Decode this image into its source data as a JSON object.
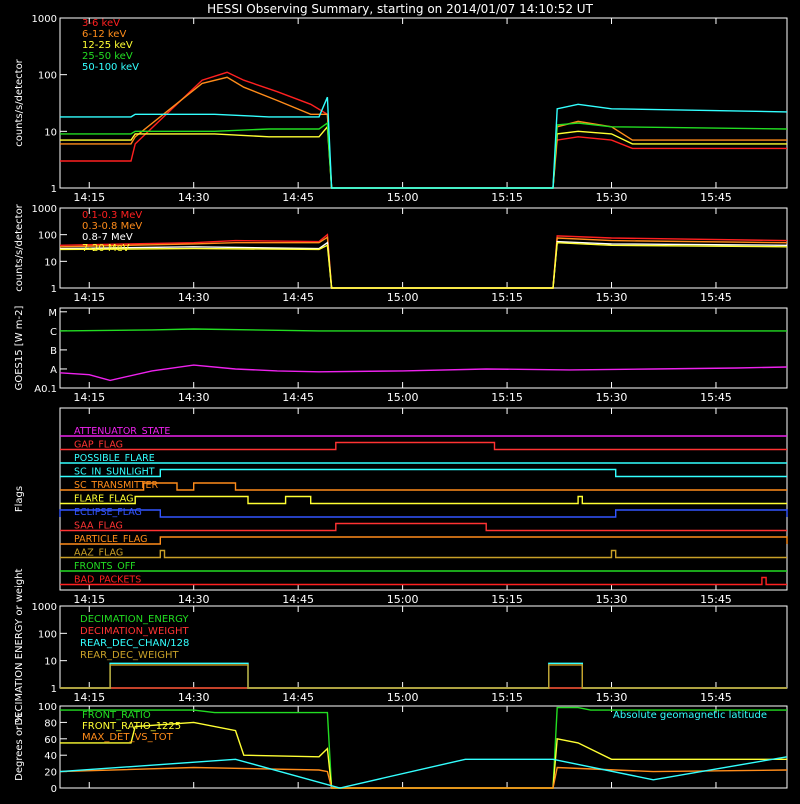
{
  "title": "HESSI Observing Summary, starting on 2014/01/07 14:10:52 UT",
  "time_ticks": [
    "14:15",
    "14:30",
    "14:45",
    "15:00",
    "15:15",
    "15:30",
    "15:45"
  ],
  "chart_data": [
    {
      "id": "lightcurve-low",
      "type": "line",
      "ylabel": "counts/s/detector",
      "yscale": "log",
      "ylim": [
        1,
        1000
      ],
      "ytick_labels": [
        "1",
        "10",
        "100",
        "1000"
      ],
      "series": [
        {
          "name": "3-6 keV",
          "color": "#ff2020",
          "x": [
            14.18,
            14.35,
            14.36,
            14.52,
            14.58,
            14.62,
            14.7,
            14.78,
            14.82,
            14.83,
            15.36,
            15.37,
            15.42,
            15.5,
            15.55,
            15.92
          ],
          "y": [
            3,
            3,
            6,
            80,
            110,
            80,
            50,
            30,
            20,
            1,
            1,
            7,
            8,
            7,
            5,
            5
          ]
        },
        {
          "name": "6-12 keV",
          "color": "#ff8c1a",
          "x": [
            14.18,
            14.35,
            14.36,
            14.52,
            14.58,
            14.62,
            14.7,
            14.78,
            14.82,
            14.83,
            15.36,
            15.37,
            15.42,
            15.5,
            15.55,
            15.92
          ],
          "y": [
            6,
            6,
            8,
            70,
            90,
            60,
            35,
            20,
            20,
            1,
            1,
            12,
            15,
            12,
            7,
            7
          ]
        },
        {
          "name": "12-25 keV",
          "color": "#ffff33",
          "x": [
            14.18,
            14.35,
            14.36,
            14.55,
            14.68,
            14.8,
            14.82,
            14.83,
            15.36,
            15.37,
            15.42,
            15.5,
            15.55,
            15.92
          ],
          "y": [
            7,
            7,
            9,
            9,
            8,
            8,
            12,
            1,
            1,
            9,
            10,
            9,
            6,
            6
          ]
        },
        {
          "name": "25-50 keV",
          "color": "#22dd22",
          "x": [
            14.18,
            14.35,
            14.36,
            14.55,
            14.68,
            14.8,
            14.82,
            14.83,
            15.36,
            15.37,
            15.42,
            15.5,
            15.92
          ],
          "y": [
            9,
            9,
            10,
            10,
            11,
            11,
            14,
            1,
            1,
            13,
            14,
            12,
            11
          ]
        },
        {
          "name": "50-100 keV",
          "color": "#33ffff",
          "x": [
            14.18,
            14.35,
            14.36,
            14.55,
            14.68,
            14.8,
            14.82,
            14.83,
            15.36,
            15.37,
            15.42,
            15.5,
            15.92
          ],
          "y": [
            18,
            18,
            20,
            20,
            18,
            18,
            40,
            1,
            1,
            25,
            30,
            25,
            22
          ]
        }
      ]
    },
    {
      "id": "lightcurve-high",
      "type": "line",
      "ylabel": "counts/s/detector",
      "yscale": "log",
      "ylim": [
        1,
        1000
      ],
      "ytick_labels": [
        "1",
        "10",
        "100",
        "1000"
      ],
      "series": [
        {
          "name": "0.1-0.3 MeV",
          "color": "#ff2020",
          "x": [
            14.18,
            14.5,
            14.6,
            14.8,
            14.82,
            14.83,
            15.36,
            15.37,
            15.5,
            15.92
          ],
          "y": [
            40,
            50,
            60,
            55,
            100,
            1,
            1,
            90,
            75,
            60
          ]
        },
        {
          "name": "0.3-0.8 MeV",
          "color": "#ff8c1a",
          "x": [
            14.18,
            14.5,
            14.6,
            14.8,
            14.82,
            14.83,
            15.36,
            15.37,
            15.5,
            15.92
          ],
          "y": [
            35,
            45,
            50,
            50,
            80,
            1,
            1,
            75,
            60,
            50
          ]
        },
        {
          "name": "0.8-7 MeV",
          "color": "#ffffff",
          "x": [
            14.18,
            14.5,
            14.8,
            14.82,
            14.83,
            15.36,
            15.37,
            15.5,
            15.92
          ],
          "y": [
            30,
            35,
            30,
            50,
            1,
            1,
            55,
            45,
            40
          ]
        },
        {
          "name": "7-20 MeV",
          "color": "#ffff33",
          "x": [
            14.18,
            14.5,
            14.8,
            14.82,
            14.83,
            15.36,
            15.37,
            15.5,
            15.92
          ],
          "y": [
            28,
            30,
            28,
            40,
            1,
            1,
            50,
            40,
            35
          ]
        }
      ]
    },
    {
      "id": "goes",
      "type": "line",
      "ylabel": "GOES15 [W m-2]",
      "ytick_labels": [
        "A0.1",
        "A",
        "B",
        "C",
        "M"
      ],
      "ytick_positions": [
        0,
        1,
        2,
        3,
        4
      ],
      "series": [
        {
          "name": "GOES 1-8 A",
          "color": "#22dd22",
          "x": [
            14.18,
            14.4,
            14.5,
            14.8,
            14.9,
            15.5,
            15.92
          ],
          "y": [
            3.0,
            3.05,
            3.1,
            3.0,
            3.0,
            3.0,
            3.0
          ]
        },
        {
          "name": "GOES 0.5-4 A",
          "color": "#ee22ee",
          "x": [
            14.18,
            14.25,
            14.3,
            14.4,
            14.5,
            14.6,
            14.7,
            14.8,
            15.0,
            15.2,
            15.4,
            15.6,
            15.8,
            15.92
          ],
          "y": [
            0.8,
            0.7,
            0.4,
            0.9,
            1.2,
            1.0,
            0.9,
            0.85,
            0.9,
            1.0,
            0.95,
            1.0,
            1.05,
            1.1
          ]
        }
      ]
    },
    {
      "id": "flags",
      "type": "line",
      "ylabel": "Flags",
      "flags": [
        {
          "name": "ATTENUATOR_STATE",
          "color": "#ee22ee",
          "on": []
        },
        {
          "name": "GAP_FLAG",
          "color": "#ff3333",
          "on": [
            [
              14.84,
              15.22
            ]
          ]
        },
        {
          "name": "POSSIBLE_FLARE",
          "color": "#33ffff",
          "on": []
        },
        {
          "name": "SC_IN_SUNLIGHT",
          "color": "#33ffff",
          "on": [
            [
              14.42,
              15.51
            ]
          ]
        },
        {
          "name": "SC_TRANSMITTER",
          "color": "#ff8c1a",
          "on": [
            [
              14.38,
              14.46
            ],
            [
              14.5,
              14.6
            ]
          ]
        },
        {
          "name": "FLARE_FLAG",
          "color": "#ffff33",
          "on": [
            [
              14.36,
              14.63
            ],
            [
              14.72,
              14.78
            ],
            [
              15.42,
              15.43
            ]
          ]
        },
        {
          "name": "ECLIPSE_FLAG",
          "color": "#3355ff",
          "on": [
            [
              14.18,
              14.42
            ],
            [
              15.51,
              15.92
            ]
          ]
        },
        {
          "name": "SAA_FLAG",
          "color": "#ff3333",
          "on": [
            [
              14.84,
              15.2
            ]
          ]
        },
        {
          "name": "PARTICLE_FLAG",
          "color": "#ff8c1a",
          "on": [
            [
              14.42,
              15.92
            ]
          ]
        },
        {
          "name": "AAZ_FLAG",
          "color": "#c8a028",
          "on": [
            [
              14.42,
              14.43
            ],
            [
              15.5,
              15.51
            ]
          ]
        },
        {
          "name": "FRONTS_OFF",
          "color": "#22dd22",
          "on": []
        },
        {
          "name": "BAD_PACKETS",
          "color": "#ff2020",
          "on": [
            [
              15.86,
              15.87
            ]
          ]
        }
      ]
    },
    {
      "id": "decimation",
      "type": "line",
      "ylabel": "DECIMATION ENERGY or weight",
      "yscale": "log",
      "ylim": [
        1,
        1000
      ],
      "ytick_labels": [
        "1",
        "10",
        "100",
        "1000"
      ],
      "series": [
        {
          "name": "DECIMATION_ENERGY",
          "color": "#22dd22",
          "x": [
            14.18,
            15.92
          ],
          "y": [
            1,
            1
          ]
        },
        {
          "name": "DECIMATION_WEIGHT",
          "color": "#ff3333",
          "x": [
            14.18,
            15.92
          ],
          "y": [
            1,
            1
          ]
        },
        {
          "name": "REAR_DEC_CHAN/128",
          "color": "#33ffff",
          "x": [
            14.18,
            14.3,
            14.3,
            14.63,
            14.63,
            15.35,
            15.35,
            15.43,
            15.43,
            15.92
          ],
          "y": [
            1,
            1,
            8,
            8,
            1,
            1,
            8,
            8,
            1,
            1
          ]
        },
        {
          "name": "REAR_DEC_WEIGHT",
          "color": "#c8a028",
          "x": [
            14.18,
            14.3,
            14.3,
            14.63,
            14.63,
            15.35,
            15.35,
            15.43,
            15.43,
            15.92
          ],
          "y": [
            1,
            1,
            7,
            7,
            1,
            1,
            7,
            7,
            1,
            1
          ]
        }
      ]
    },
    {
      "id": "ratios",
      "type": "line",
      "ylabel": "Degrees or %",
      "ylim": [
        0,
        100
      ],
      "ytick_labels": [
        "0",
        "20",
        "40",
        "60",
        "80",
        "100"
      ],
      "annotation": "Absolute geomagnetic latitude",
      "annotation_color": "#33ffff",
      "series": [
        {
          "name": "FRONT_RATIO",
          "color": "#22dd22",
          "x": [
            14.18,
            14.5,
            14.55,
            14.82,
            14.83,
            15.36,
            15.37,
            15.42,
            15.45,
            15.92
          ],
          "y": [
            95,
            95,
            92,
            92,
            0,
            0,
            98,
            98,
            95,
            95
          ]
        },
        {
          "name": "FRONT_RATIO_1225",
          "color": "#ffff33",
          "x": [
            14.18,
            14.35,
            14.36,
            14.5,
            14.6,
            14.62,
            14.8,
            14.82,
            14.83,
            15.36,
            15.37,
            15.42,
            15.5,
            15.92
          ],
          "y": [
            55,
            55,
            75,
            80,
            70,
            40,
            38,
            48,
            0,
            0,
            60,
            55,
            35,
            35
          ]
        },
        {
          "name": "MAX_DET_VS_TOT",
          "color": "#ff8c1a",
          "x": [
            14.18,
            14.5,
            14.8,
            14.82,
            14.83,
            15.36,
            15.37,
            15.6,
            15.92
          ],
          "y": [
            20,
            25,
            22,
            20,
            0,
            0,
            25,
            20,
            22
          ]
        },
        {
          "name": "",
          "color": "#33ffff",
          "x": [
            14.18,
            14.6,
            14.85,
            15.15,
            15.36,
            15.6,
            15.92
          ],
          "y": [
            20,
            35,
            0,
            35,
            35,
            10,
            38
          ]
        }
      ]
    }
  ]
}
